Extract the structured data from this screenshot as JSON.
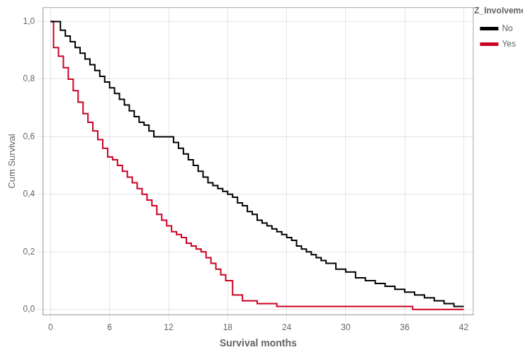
{
  "chart_data": {
    "type": "step",
    "xlabel": "Survival months",
    "ylabel": "Cum Survival",
    "legend_title": "SVZ_Involvement",
    "legend": "right",
    "grid": true,
    "xlim": [
      -0.8,
      43
    ],
    "ylim": [
      -0.02,
      1.05
    ],
    "xticks": [
      0,
      6,
      12,
      18,
      24,
      30,
      36,
      42
    ],
    "yticks": [
      {
        "value": 0.0,
        "label": "0,0"
      },
      {
        "value": 0.2,
        "label": "0,2"
      },
      {
        "value": 0.4,
        "label": "0,4"
      },
      {
        "value": 0.6,
        "label": "0,6"
      },
      {
        "value": 0.8,
        "label": "0,8"
      },
      {
        "value": 1.0,
        "label": "1,0"
      }
    ],
    "series": [
      {
        "name": "No",
        "color": "#000000",
        "x": [
          0,
          0.5,
          1.0,
          1.5,
          2.0,
          2.5,
          3.0,
          3.5,
          4.0,
          4.5,
          5.0,
          5.5,
          6.0,
          6.5,
          7.0,
          7.5,
          8.0,
          8.5,
          9.0,
          9.5,
          10.0,
          10.5,
          11.0,
          12.0,
          12.5,
          13.0,
          13.5,
          14.0,
          14.5,
          15.0,
          15.5,
          16.0,
          16.5,
          17.0,
          17.5,
          18.0,
          18.5,
          19.0,
          19.5,
          20.0,
          20.5,
          21.0,
          21.5,
          22.0,
          22.5,
          23.0,
          23.5,
          24.0,
          24.5,
          25.0,
          25.5,
          26.0,
          26.5,
          27.0,
          27.5,
          28.0,
          29.0,
          30.0,
          31.0,
          32.0,
          33.0,
          34.0,
          35.0,
          36.0,
          37.0,
          38.0,
          39.0,
          40.0,
          41.0,
          42.0
        ],
        "values": [
          1.0,
          1.0,
          0.97,
          0.95,
          0.93,
          0.91,
          0.89,
          0.87,
          0.85,
          0.83,
          0.81,
          0.79,
          0.77,
          0.75,
          0.73,
          0.71,
          0.69,
          0.67,
          0.65,
          0.64,
          0.62,
          0.6,
          0.6,
          0.6,
          0.58,
          0.56,
          0.54,
          0.52,
          0.5,
          0.48,
          0.46,
          0.44,
          0.43,
          0.42,
          0.41,
          0.4,
          0.39,
          0.37,
          0.36,
          0.34,
          0.33,
          0.31,
          0.3,
          0.29,
          0.28,
          0.27,
          0.26,
          0.25,
          0.24,
          0.22,
          0.21,
          0.2,
          0.19,
          0.18,
          0.17,
          0.16,
          0.14,
          0.13,
          0.11,
          0.1,
          0.09,
          0.08,
          0.07,
          0.06,
          0.05,
          0.04,
          0.03,
          0.02,
          0.01,
          0.01
        ]
      },
      {
        "name": "Yes",
        "color": "#cc0022",
        "x": [
          0,
          0.3,
          0.8,
          1.3,
          1.8,
          2.3,
          2.8,
          3.3,
          3.8,
          4.3,
          4.8,
          5.3,
          5.8,
          6.3,
          6.8,
          7.3,
          7.8,
          8.3,
          8.8,
          9.3,
          9.8,
          10.3,
          10.8,
          11.3,
          11.8,
          12.3,
          12.8,
          13.3,
          13.8,
          14.3,
          14.8,
          15.3,
          15.8,
          16.3,
          16.8,
          17.3,
          17.8,
          18.5,
          19.5,
          21.0,
          23.0,
          25.0,
          27.0,
          30.0,
          33.0,
          36.0,
          36.8,
          42.0
        ],
        "values": [
          1.0,
          0.91,
          0.88,
          0.84,
          0.8,
          0.76,
          0.72,
          0.68,
          0.65,
          0.62,
          0.59,
          0.56,
          0.53,
          0.52,
          0.5,
          0.48,
          0.46,
          0.44,
          0.42,
          0.4,
          0.38,
          0.36,
          0.33,
          0.31,
          0.29,
          0.27,
          0.26,
          0.25,
          0.23,
          0.22,
          0.21,
          0.2,
          0.18,
          0.16,
          0.14,
          0.12,
          0.1,
          0.05,
          0.03,
          0.02,
          0.01,
          0.01,
          0.01,
          0.01,
          0.01,
          0.01,
          0.0,
          0.0
        ]
      }
    ]
  }
}
